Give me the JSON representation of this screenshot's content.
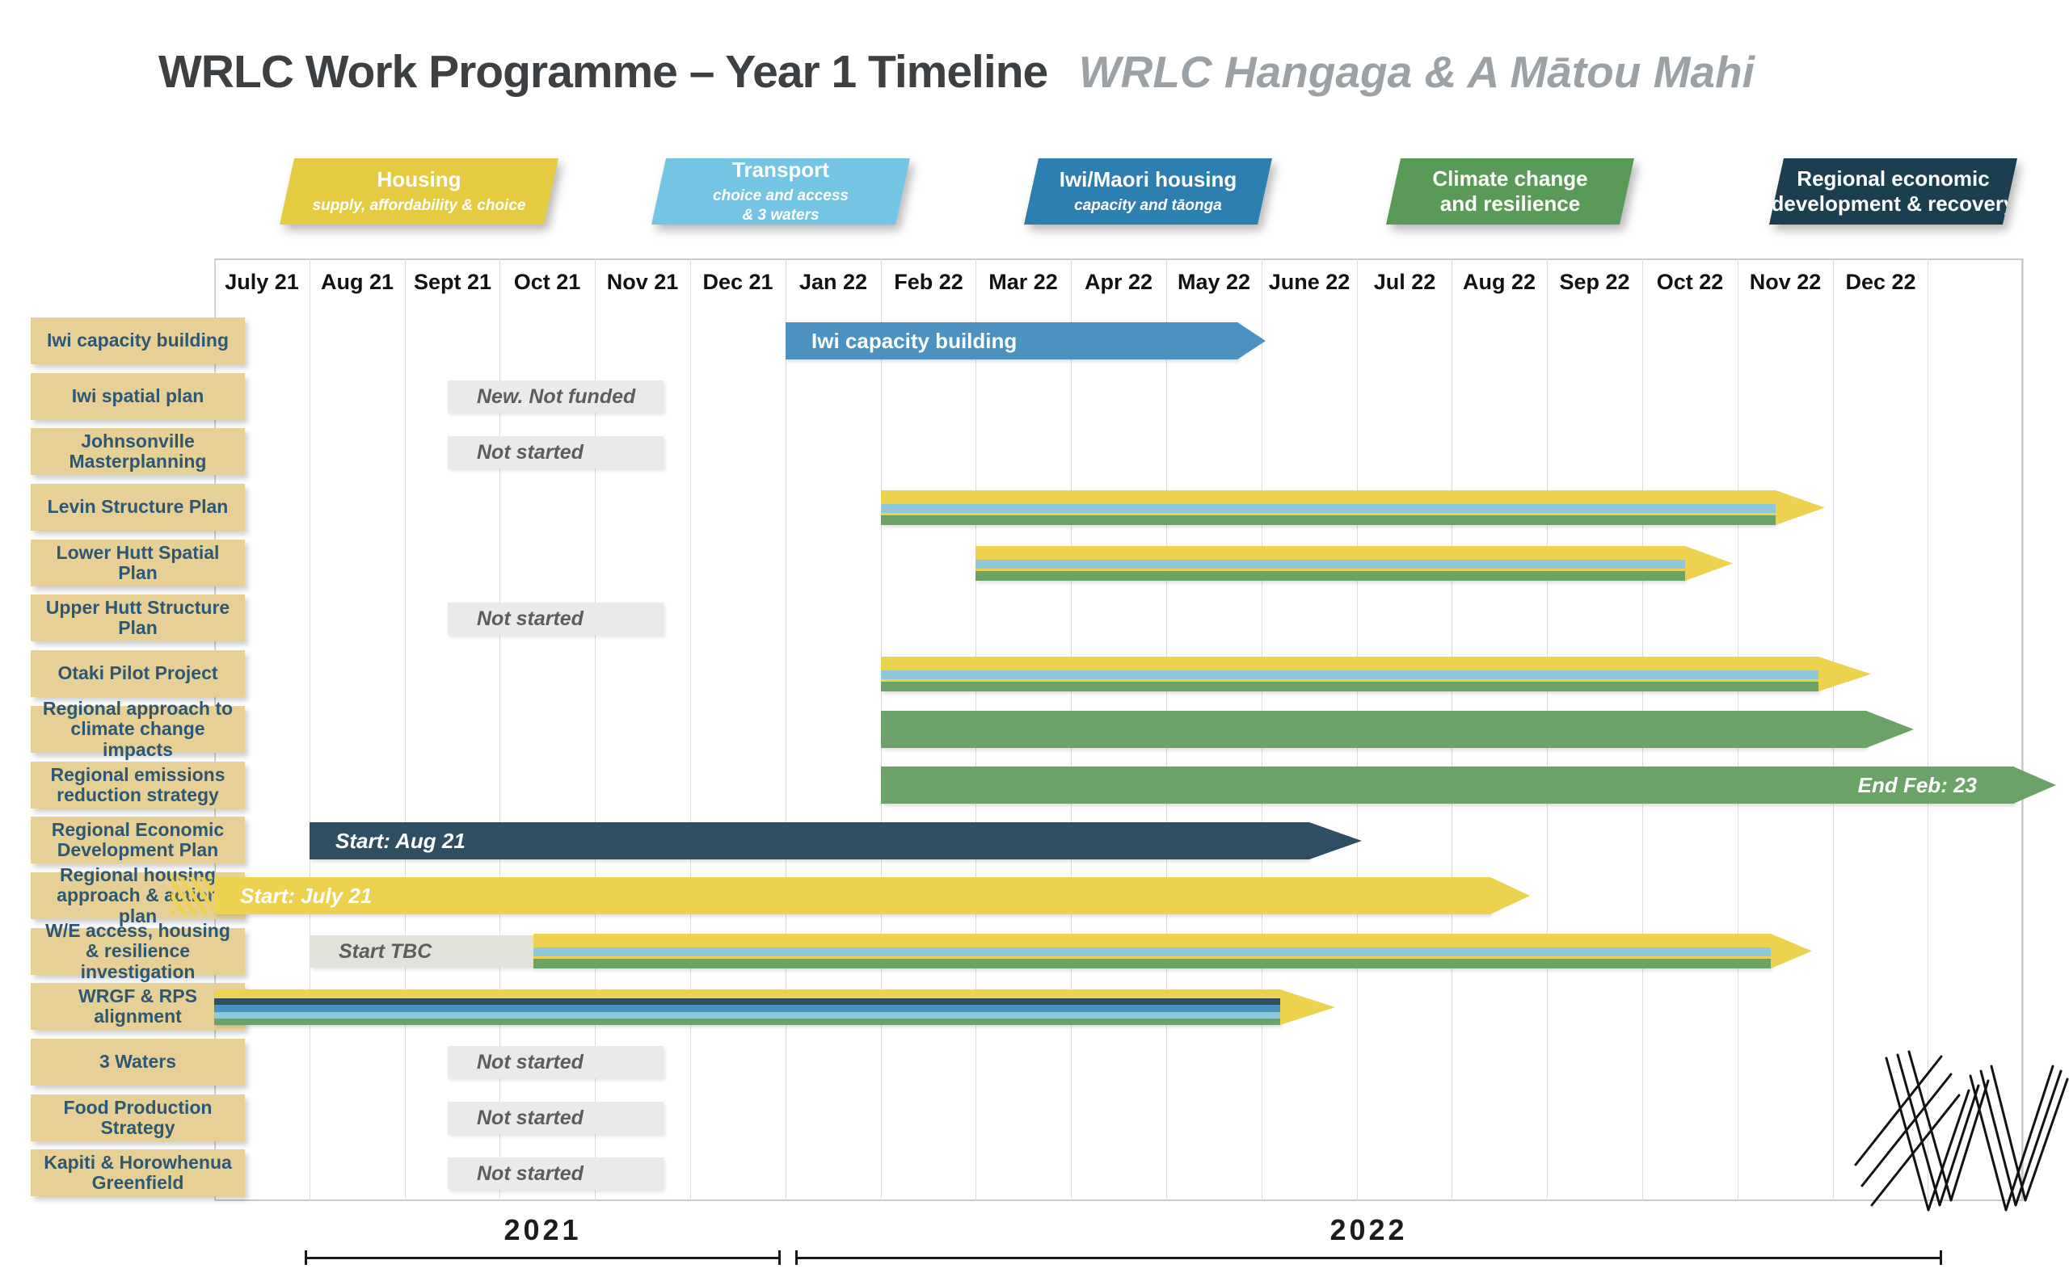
{
  "title": "WRLC Work Programme – Year 1 Timeline",
  "subtitle": "WRLC Hangaga & A Mātou Mahi",
  "banners": [
    {
      "title": "Housing",
      "subtitle": "supply, affordability & choice",
      "color": "#e5cb42"
    },
    {
      "title": "Transport",
      "subtitle": "choice and access\n& 3 waters",
      "color": "#74c4e4"
    },
    {
      "title": "Iwi/Maori housing",
      "subtitle": "capacity and tāonga",
      "color": "#2d7fb0"
    },
    {
      "title": "Climate change\nand resilience",
      "subtitle": "",
      "color": "#5a9a58"
    },
    {
      "title": "Regional economic\ndevelopment & recovery",
      "subtitle": "",
      "color": "#1b3f51"
    }
  ],
  "chart_data": {
    "type": "gantt",
    "title": "WRLC Work Programme – Year 1 Timeline",
    "subtitle": "WRLC Hangaga & A Mātou Mahi",
    "time_axis": {
      "months": [
        "July 21",
        "Aug 21",
        "Sept 21",
        "Oct 21",
        "Nov 21",
        "Dec 21",
        "Jan 22",
        "Feb 22",
        "Mar 22",
        "Apr 22",
        "May 22",
        "June 22",
        "Jul 22",
        "Aug 22",
        "Sep 22",
        "Oct 22",
        "Nov 22",
        "Dec 22"
      ],
      "extra_unlabeled_columns": 1,
      "grid": true
    },
    "years": [
      {
        "label": "2021",
        "start": 0.95,
        "end": 5.95
      },
      {
        "label": "2022",
        "start": 6.1,
        "end": 18.15
      }
    ],
    "colors": {
      "yellow": "#ecd24f",
      "light_blue": "#8ec8da",
      "blue": "#4b92c1",
      "green": "#6aa267",
      "dark_teal": "#2f4e62",
      "label_bg": "#e7d095",
      "label_text": "#2d5875",
      "status_bg": "#eaeaea",
      "status_tbc_bg": "#e3e2da",
      "status_text": "#5d5d5d",
      "grid_line": "#dcdcdc"
    },
    "rows": [
      {
        "label": "Iwi capacity building",
        "bar": {
          "type": "solid",
          "color": "blue",
          "start": 6.0,
          "end": 10.75,
          "tip": 11.05,
          "text": "Iwi capacity building",
          "text_align": "left",
          "italic": false
        }
      },
      {
        "label": "Iwi spatial plan",
        "bar": {
          "type": "status",
          "text": "New. Not funded",
          "start": 2.45,
          "end": 4.72
        }
      },
      {
        "label": "Johnsonville Masterplanning",
        "bar": {
          "type": "status",
          "text": "Not started",
          "start": 2.45,
          "end": 4.72
        }
      },
      {
        "label": "Levin Structure Plan",
        "bar": {
          "type": "striped3",
          "start": 7.0,
          "end": 16.4,
          "tip": 16.92
        }
      },
      {
        "label": "Lower Hutt Spatial Plan",
        "bar": {
          "type": "striped3",
          "start": 8.0,
          "end": 15.45,
          "tip": 15.95
        }
      },
      {
        "label": "Upper Hutt Structure Plan",
        "bar": {
          "type": "status",
          "text": "Not started",
          "start": 2.45,
          "end": 4.72
        }
      },
      {
        "label": "Otaki Pilot Project",
        "bar": {
          "type": "striped3",
          "start": 7.0,
          "end": 16.85,
          "tip": 17.4
        }
      },
      {
        "label": "Regional approach to climate change impacts",
        "bar": {
          "type": "solid",
          "color": "green",
          "start": 7.0,
          "end": 17.35,
          "tip": 17.85
        }
      },
      {
        "label": "Regional emissions reduction strategy",
        "bar": {
          "type": "solid",
          "color": "green",
          "start": 7.0,
          "end": 18.9,
          "tip": 19.35,
          "text": "End Feb: 23",
          "text_align": "right",
          "italic": true
        }
      },
      {
        "label": "Regional Economic Development Plan",
        "bar": {
          "type": "solid",
          "color": "dark_teal",
          "start": 1.0,
          "end": 11.5,
          "tip": 12.05,
          "text": "Start: Aug 21",
          "text_align": "left",
          "italic": true
        }
      },
      {
        "label": "Regional housing approach & action plan",
        "bar": {
          "type": "solid",
          "color": "yellow",
          "start": 0.0,
          "end": 13.4,
          "tip": 13.82,
          "text": "Start: July 21",
          "text_align": "left",
          "italic": true,
          "hatch_before": {
            "start": -0.45,
            "end": -0.02
          }
        }
      },
      {
        "label": "W/E access, housing & resilience investigation",
        "bar": {
          "type": "striped3",
          "start": 3.35,
          "end": 16.35,
          "tip": 16.78,
          "status_before": {
            "text": "Start TBC",
            "start": 1.0,
            "end": 3.38
          }
        }
      },
      {
        "label": "WRGF & RPS alignment",
        "bar": {
          "type": "striped5",
          "start": 0.0,
          "end": 11.2,
          "tip": 11.78
        }
      },
      {
        "label": "3 Waters",
        "bar": {
          "type": "status",
          "text": "Not started",
          "start": 2.45,
          "end": 4.72
        }
      },
      {
        "label": "Food Production Strategy",
        "bar": {
          "type": "status",
          "text": "Not started",
          "start": 2.45,
          "end": 4.72
        }
      },
      {
        "label": "Kapiti & Horowhenua Greenfield",
        "bar": {
          "type": "status",
          "text": "Not started",
          "start": 2.45,
          "end": 4.72
        }
      }
    ]
  }
}
